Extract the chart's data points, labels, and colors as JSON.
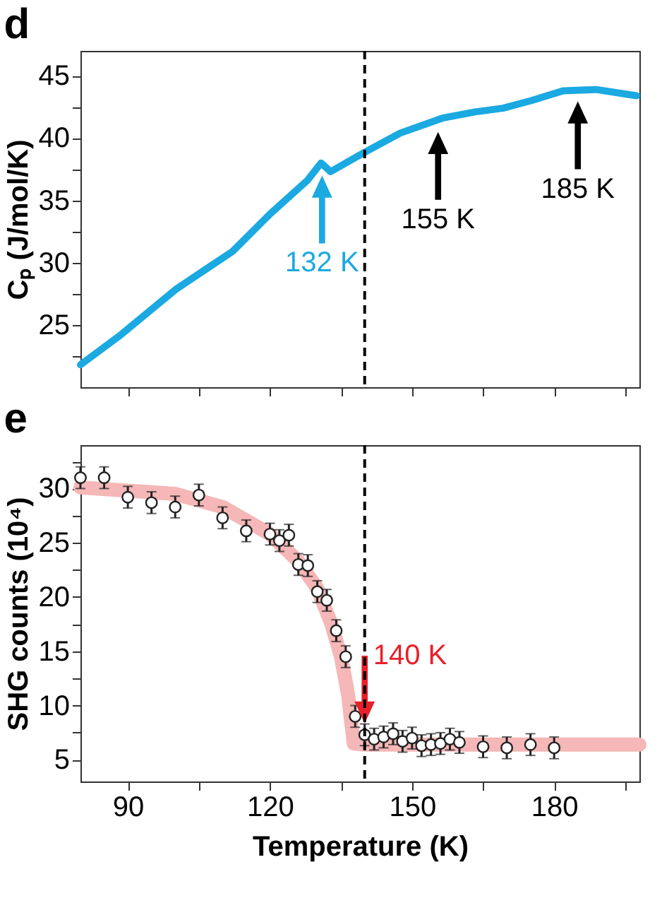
{
  "chart_data": [
    {
      "type": "line",
      "title": "d",
      "ylabel": "Cₚ (J/mol/K)",
      "xlim": [
        80,
        198
      ],
      "xticks": [
        90,
        {
          "value": 105,
          "label": null
        },
        120,
        {
          "value": 135,
          "label": null
        },
        150,
        {
          "value": 165,
          "label": null
        },
        180,
        {
          "value": 195,
          "label": null
        }
      ],
      "ylim": [
        20,
        47
      ],
      "yticks": [
        {
          "value": 22.5,
          "label": null
        },
        25,
        {
          "value": 27.5,
          "label": null
        },
        30,
        {
          "value": 32.5,
          "label": null
        },
        35,
        {
          "value": 37.5,
          "label": null
        },
        40,
        {
          "value": 42.5,
          "label": null
        },
        45
      ],
      "tick_labels": "y",
      "x": [
        80,
        88.5,
        100.3,
        106.2,
        112.1,
        120,
        127.9,
        130.8,
        132.8,
        139.7,
        147.5,
        156.4,
        163.3,
        169.2,
        175.1,
        181.9,
        188.8,
        197.4
      ],
      "series": [
        {
          "color": "#1ba9e1",
          "values": [
            21.8,
            24.2,
            27.9,
            29.4,
            30.9,
            33.9,
            36.6,
            38.0,
            37.3,
            38.8,
            40.4,
            41.6,
            42.1,
            42.4,
            43.0,
            43.8,
            43.9,
            43.4
          ]
        }
      ],
      "ref_lines": [
        {
          "axis": "x",
          "value": 140,
          "color": "#000000",
          "line_style": "dashed"
        }
      ],
      "annotations": [
        {
          "text": "132 K",
          "x": 131,
          "y": 37.9
        },
        {
          "text": "155 K",
          "x": 155.5,
          "y": 41.4
        },
        {
          "text": "185 K",
          "x": 185,
          "y": 43.85
        }
      ]
    },
    {
      "type": "scatter",
      "title": "e",
      "xlabel": "Temperature (K)",
      "ylabel": "SHG counts (10⁴)",
      "xlim": [
        80,
        198
      ],
      "xticks": [
        90,
        {
          "value": 105,
          "label": null
        },
        120,
        {
          "value": 135,
          "label": null
        },
        150,
        {
          "value": 165,
          "label": null
        },
        180,
        {
          "value": 195,
          "label": null
        }
      ],
      "ylim": [
        3,
        34
      ],
      "yticks": [
        5,
        {
          "value": 7.5,
          "label": null
        },
        10,
        {
          "value": 12.5,
          "label": null
        },
        15,
        {
          "value": 17.5,
          "label": null
        },
        20,
        {
          "value": 22.5,
          "label": null
        },
        25,
        {
          "value": 27.5,
          "label": null
        },
        30,
        {
          "value": 32.5,
          "label": null
        }
      ],
      "series": [
        {
          "type": "line",
          "marker": "none",
          "color": "#f5b7b7",
          "x": [
            80,
            100,
            110,
            120,
            126,
            130,
            133,
            135,
            136.5,
            137.3,
            137.7,
            140,
            198
          ],
          "values": [
            30.1,
            29.5,
            28.3,
            25.8,
            23.3,
            20.8,
            17.5,
            14.5,
            11,
            8,
            6.5,
            6.4,
            6.4
          ]
        },
        {
          "type": "scatter",
          "marker": "circle",
          "color": "#ffffff",
          "x": [
            80,
            85,
            90,
            95,
            100,
            105,
            110,
            115,
            120,
            122,
            124,
            126,
            128,
            130,
            132,
            134,
            136,
            138,
            140,
            142,
            144,
            146,
            148,
            150,
            152,
            154,
            156,
            158,
            160,
            165,
            170,
            175,
            180
          ],
          "values": [
            31.0,
            31.0,
            29.2,
            28.7,
            28.3,
            29.4,
            27.3,
            26.1,
            25.8,
            25.2,
            25.7,
            23.0,
            22.9,
            20.5,
            19.7,
            16.9,
            14.5,
            9.0,
            7.3,
            6.9,
            7.1,
            7.4,
            6.7,
            7.0,
            6.3,
            6.4,
            6.5,
            6.9,
            6.6,
            6.2,
            6.1,
            6.4,
            6.1
          ],
          "errors": [
            1,
            1,
            1,
            1,
            1,
            1,
            1,
            1,
            1,
            1,
            1,
            1,
            1,
            1,
            1,
            1,
            1,
            1,
            1,
            1,
            1,
            1,
            1,
            1,
            1,
            1,
            1,
            1,
            1,
            1,
            1,
            1,
            1
          ]
        }
      ],
      "ref_lines": [
        {
          "axis": "x",
          "value": 140,
          "color": "#000000",
          "line_style": "dashed"
        }
      ],
      "annotations": [
        {
          "text": "140 K",
          "x": 140,
          "y": 7.3
        }
      ]
    }
  ]
}
